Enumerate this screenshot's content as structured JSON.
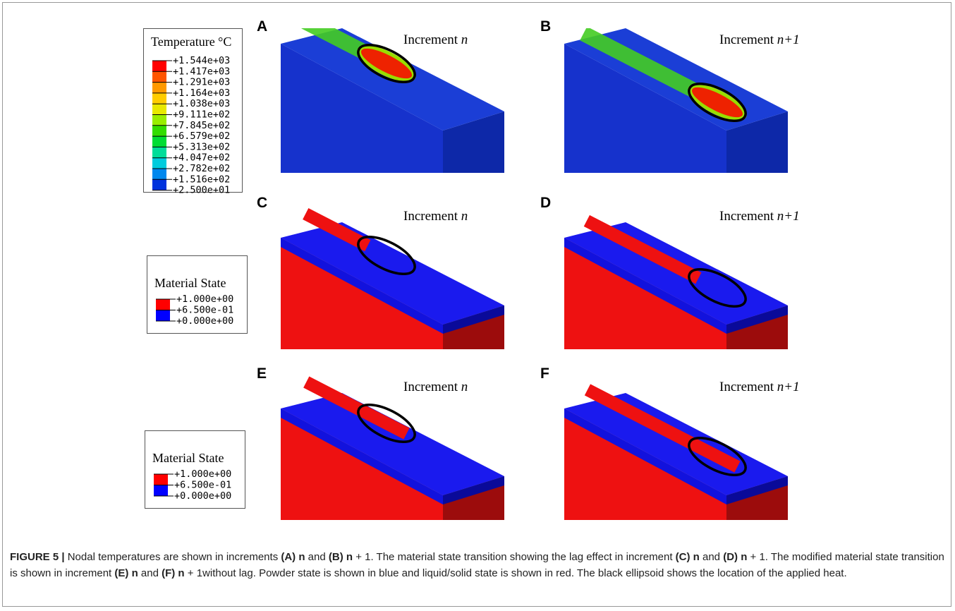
{
  "legends": [
    {
      "title": "Temperature °C",
      "labels": [
        "+1.544e+03",
        "+1.417e+03",
        "+1.291e+03",
        "+1.164e+03",
        "+1.038e+03",
        "+9.111e+02",
        "+7.845e+02",
        "+6.579e+02",
        "+5.313e+02",
        "+4.047e+02",
        "+2.782e+02",
        "+1.516e+02",
        "+2.500e+01"
      ],
      "colors": [
        "#ff0000",
        "#ff5500",
        "#ff9900",
        "#ffcc00",
        "#e8e800",
        "#99ee00",
        "#33dd00",
        "#00dd33",
        "#00dd99",
        "#00ccdd",
        "#0088ee",
        "#0033dd"
      ]
    },
    {
      "title": "Material State",
      "labels": [
        "+1.000e+00",
        "+6.500e-01",
        "+0.000e+00"
      ],
      "colors": [
        "#ff0000",
        "#0000ff"
      ]
    },
    {
      "title": "Material State",
      "labels": [
        "+1.000e+00",
        "+6.500e-01",
        "+0.000e+00"
      ],
      "colors": [
        "#ff0000",
        "#0000ff"
      ]
    }
  ],
  "panels": [
    {
      "letter": "A",
      "label": "Increment",
      "variable": "n"
    },
    {
      "letter": "B",
      "label": "Increment",
      "variable": "n+1"
    },
    {
      "letter": "C",
      "label": "Increment",
      "variable": "n"
    },
    {
      "letter": "D",
      "label": "Increment",
      "variable": "n+1"
    },
    {
      "letter": "E",
      "label": "Increment",
      "variable": "n"
    },
    {
      "letter": "F",
      "label": "Increment",
      "variable": "n+1"
    }
  ],
  "caption": {
    "parts": [
      "FIGURE 5 |",
      " Nodal temperatures are shown in increments ",
      "(A) n",
      " and ",
      "(B) n",
      " + 1. The material state transition showing the lag effect in increment ",
      "(C) n",
      " and ",
      "(D) n",
      " + 1. The modified material state transition is shown in increment ",
      "(E) n",
      " and ",
      "(F) n",
      " + 1without lag. Powder state is shown in blue and liquid/solid state is shown in red. The black ellipsoid shows the location of the applied heat."
    ]
  }
}
